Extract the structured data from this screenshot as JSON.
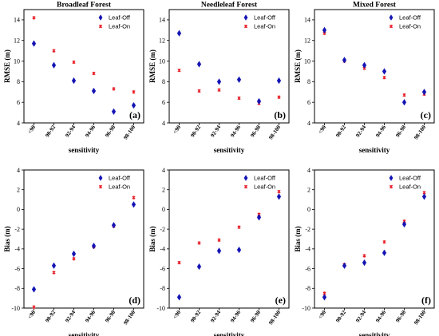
{
  "legend": {
    "off": "Leaf-Off",
    "on": "Leaf-On"
  },
  "colors": {
    "off": "#1414b4",
    "on": "#e8202a"
  },
  "chart_data": [
    {
      "id": "a",
      "type": "scatter",
      "title": "Broadleaf Forest",
      "letter": "(a)",
      "xlabel": "sensitivity",
      "ylabel": "RMSE (m)",
      "categories": [
        "<90",
        "90-92",
        "92-94",
        "94-96",
        "96-98",
        "98-100"
      ],
      "ylim": [
        4,
        15
      ],
      "yticks": [
        4,
        6,
        8,
        10,
        12,
        14
      ],
      "legend_position": "top-right",
      "series": [
        {
          "name": "Leaf-Off",
          "values": [
            11.7,
            9.6,
            8.1,
            7.1,
            5.1,
            5.7
          ]
        },
        {
          "name": "Leaf-On",
          "values": [
            14.2,
            11.0,
            9.9,
            8.8,
            7.3,
            7.0
          ]
        }
      ]
    },
    {
      "id": "b",
      "type": "scatter",
      "title": "Needleleaf Forest",
      "letter": "(b)",
      "xlabel": "sensitivity",
      "ylabel": "RMSE (m)",
      "categories": [
        "<90",
        "90-92",
        "92-94",
        "94-96",
        "96-98",
        "98-100"
      ],
      "ylim": [
        4,
        15
      ],
      "yticks": [
        4,
        6,
        8,
        10,
        12,
        14
      ],
      "legend_position": "top-right",
      "series": [
        {
          "name": "Leaf-Off",
          "values": [
            12.7,
            9.7,
            8.0,
            8.2,
            6.1,
            8.1
          ]
        },
        {
          "name": "Leaf-On",
          "values": [
            9.1,
            7.1,
            7.2,
            6.4,
            5.9,
            6.5
          ]
        }
      ]
    },
    {
      "id": "c",
      "type": "scatter",
      "title": "Mixed Forest",
      "letter": "(c)",
      "xlabel": "sensitivity",
      "ylabel": "RMSE (m)",
      "categories": [
        "<90",
        "90-92",
        "92-94",
        "94-96",
        "96-98",
        "98-100"
      ],
      "ylim": [
        4,
        15
      ],
      "yticks": [
        4,
        6,
        8,
        10,
        12,
        14
      ],
      "legend_position": "top-right",
      "series": [
        {
          "name": "Leaf-Off",
          "values": [
            13.0,
            10.1,
            9.6,
            9.0,
            6.0,
            7.0
          ]
        },
        {
          "name": "Leaf-On",
          "values": [
            12.7,
            10.0,
            9.3,
            8.4,
            6.7,
            6.8
          ]
        }
      ]
    },
    {
      "id": "d",
      "type": "scatter",
      "title": "",
      "letter": "(d)",
      "xlabel": "sensitivity",
      "ylabel": "Bias (m)",
      "categories": [
        "<90",
        "90-92",
        "92-94",
        "94-96",
        "96-98",
        "98-100"
      ],
      "ylim": [
        -10,
        4
      ],
      "yticks": [
        -10,
        -8,
        -6,
        -4,
        -2,
        0,
        2,
        4
      ],
      "legend_position": "top-right",
      "series": [
        {
          "name": "Leaf-Off",
          "values": [
            -8.1,
            -5.7,
            -4.5,
            -3.7,
            -1.6,
            0.5
          ]
        },
        {
          "name": "Leaf-On",
          "values": [
            -9.9,
            -6.4,
            -5.0,
            -3.8,
            -1.7,
            1.2
          ]
        }
      ]
    },
    {
      "id": "e",
      "type": "scatter",
      "title": "",
      "letter": "(e)",
      "xlabel": "sensitivity",
      "ylabel": "Bias (m)",
      "categories": [
        "<90",
        "90-92",
        "92-94",
        "94-96",
        "96-98",
        "98-100"
      ],
      "ylim": [
        -10,
        4
      ],
      "yticks": [
        -10,
        -8,
        -6,
        -4,
        -2,
        0,
        2,
        4
      ],
      "legend_position": "top-right",
      "series": [
        {
          "name": "Leaf-Off",
          "values": [
            -8.9,
            -5.8,
            -4.2,
            -4.1,
            -0.8,
            1.3
          ]
        },
        {
          "name": "Leaf-On",
          "values": [
            -5.4,
            -3.4,
            -3.1,
            -1.8,
            -0.5,
            1.8
          ]
        }
      ]
    },
    {
      "id": "f",
      "type": "scatter",
      "title": "",
      "letter": "(f)",
      "xlabel": "sensitivity",
      "ylabel": "Bias (m)",
      "categories": [
        "<90",
        "90-92",
        "92-94",
        "94-96",
        "96-98",
        "98-100"
      ],
      "ylim": [
        -10,
        4
      ],
      "yticks": [
        -10,
        -8,
        -6,
        -4,
        -2,
        0,
        2,
        4
      ],
      "legend_position": "top-right",
      "series": [
        {
          "name": "Leaf-Off",
          "values": [
            -8.9,
            -5.7,
            -5.4,
            -4.4,
            -1.5,
            1.3
          ]
        },
        {
          "name": "Leaf-On",
          "values": [
            -8.5,
            -5.6,
            -4.7,
            -3.3,
            -1.2,
            1.7
          ]
        }
      ]
    }
  ]
}
